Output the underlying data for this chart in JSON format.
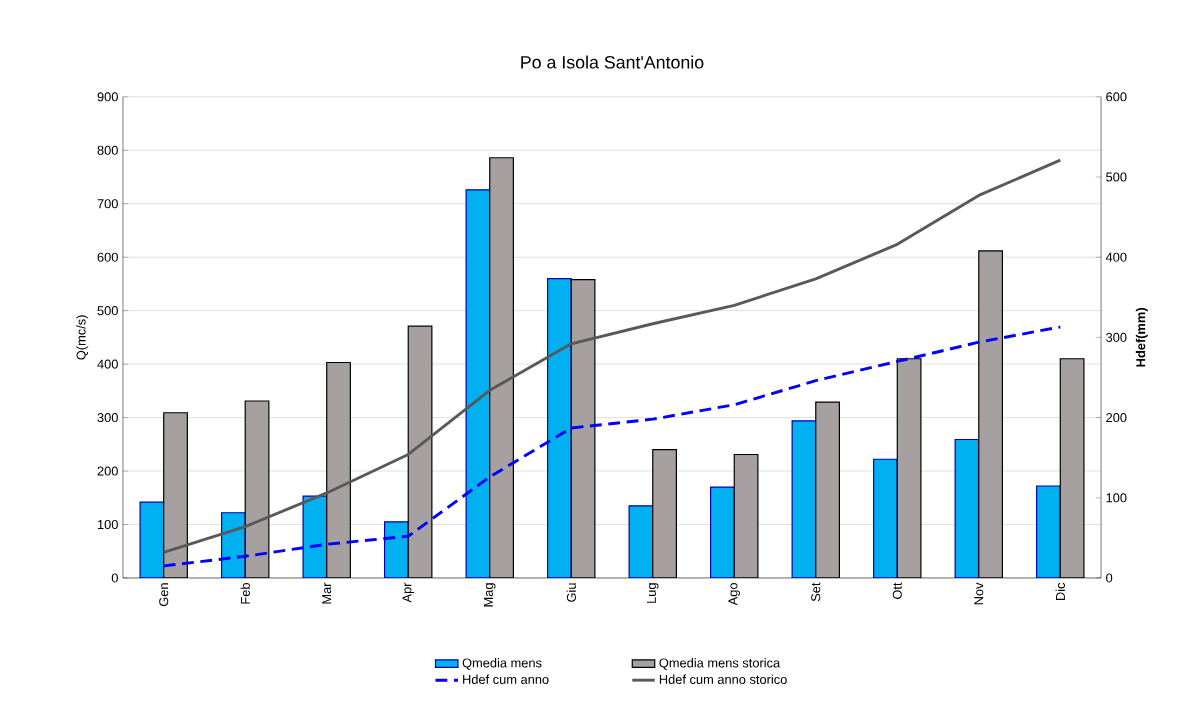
{
  "chart_data": {
    "type": "bar",
    "title": "Po a Isola Sant'Antonio",
    "ylabel": "Q(mc/s)",
    "y2label": "Hdef(mm)",
    "categories": [
      "Gen",
      "Feb",
      "Mar",
      "Apr",
      "Mag",
      "Giu",
      "Lug",
      "Ago",
      "Set",
      "Ott",
      "Nov",
      "Dic"
    ],
    "series": [
      {
        "name": "Qmedia mens",
        "color": "#00b0f0",
        "values": [
          142,
          122,
          153,
          105,
          726,
          560,
          135,
          170,
          294,
          222,
          259,
          172
        ]
      },
      {
        "name": "Qmedia mens storica",
        "color": "#a6a0a0",
        "values": [
          309,
          331,
          403,
          471,
          786,
          558,
          240,
          231,
          329,
          410,
          612,
          410
        ]
      },
      {
        "name": "Hdef cum anno",
        "type": "line",
        "axis": "y2",
        "line_style": "dashed",
        "color": "#0000ff",
        "values": [
          15,
          27,
          42,
          52,
          126,
          187,
          198,
          216,
          246,
          270,
          294,
          313
        ]
      },
      {
        "name": "Hdef cum anno storico",
        "type": "line",
        "axis": "y2",
        "line_style": "solid",
        "color": "#595959",
        "values": [
          32,
          64,
          106,
          154,
          234,
          292,
          317,
          340,
          373,
          416,
          477,
          521
        ]
      }
    ],
    "ylim": [
      0,
      900
    ],
    "yticks": [
      0,
      100,
      200,
      300,
      400,
      500,
      600,
      700,
      800,
      900
    ],
    "y2lim": [
      0,
      600
    ],
    "y2ticks": [
      0,
      100,
      200,
      300,
      400,
      500,
      600
    ],
    "grid": "y",
    "legend": "bottom",
    "marker": "none"
  }
}
